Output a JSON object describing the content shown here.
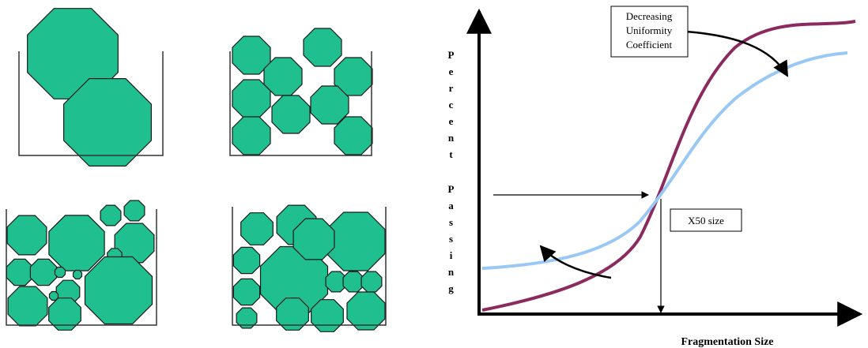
{
  "annotations": {
    "uniformity": [
      "Decreasing",
      "Uniformity",
      "Coefficient"
    ],
    "x50": "X50 size"
  },
  "axes": {
    "x_label": "Fragmentation Size",
    "y_label": [
      "Percent",
      "Passing"
    ]
  }
}
